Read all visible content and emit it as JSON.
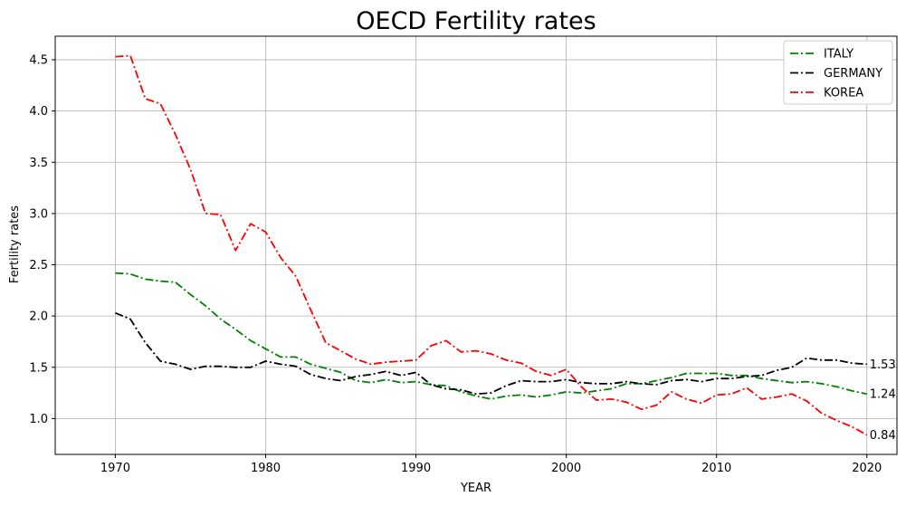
{
  "chart_data": {
    "type": "line",
    "title": "OECD Fertility rates",
    "xlabel": "YEAR",
    "ylabel": "Fertility rates",
    "xlim": [
      1966,
      2022
    ],
    "ylim": [
      0.65,
      4.73
    ],
    "xticks": [
      1970,
      1980,
      1990,
      2000,
      2010,
      2020
    ],
    "yticks": [
      1.0,
      1.5,
      2.0,
      2.5,
      3.0,
      3.5,
      4.0,
      4.5
    ],
    "xtick_labels": [
      "1970",
      "1980",
      "1990",
      "2000",
      "2010",
      "2020"
    ],
    "ytick_labels": [
      "1.0",
      "1.5",
      "2.0",
      "2.5",
      "3.0",
      "3.5",
      "4.0",
      "4.5"
    ],
    "grid": true,
    "legend_position": "top-right",
    "line_style": "dash-dot",
    "x": [
      1970,
      1971,
      1972,
      1973,
      1974,
      1975,
      1976,
      1977,
      1978,
      1979,
      1980,
      1981,
      1982,
      1983,
      1984,
      1985,
      1986,
      1987,
      1988,
      1989,
      1990,
      1991,
      1992,
      1993,
      1994,
      1995,
      1996,
      1997,
      1998,
      1999,
      2000,
      2001,
      2002,
      2003,
      2004,
      2005,
      2006,
      2007,
      2008,
      2009,
      2010,
      2011,
      2012,
      2013,
      2014,
      2015,
      2016,
      2017,
      2018,
      2019,
      2020
    ],
    "series": [
      {
        "name": "ITALY",
        "color": "#008000",
        "values": [
          2.42,
          2.41,
          2.36,
          2.34,
          2.33,
          2.21,
          2.1,
          1.97,
          1.87,
          1.76,
          1.68,
          1.6,
          1.6,
          1.53,
          1.49,
          1.45,
          1.37,
          1.35,
          1.38,
          1.35,
          1.36,
          1.33,
          1.32,
          1.26,
          1.22,
          1.19,
          1.22,
          1.23,
          1.21,
          1.23,
          1.26,
          1.25,
          1.27,
          1.29,
          1.34,
          1.34,
          1.37,
          1.4,
          1.44,
          1.44,
          1.44,
          1.42,
          1.42,
          1.39,
          1.37,
          1.35,
          1.36,
          1.34,
          1.31,
          1.27,
          1.24
        ]
      },
      {
        "name": "GERMANY",
        "color": "#000000",
        "values": [
          2.03,
          1.97,
          1.74,
          1.56,
          1.53,
          1.48,
          1.51,
          1.51,
          1.5,
          1.5,
          1.56,
          1.53,
          1.51,
          1.43,
          1.39,
          1.37,
          1.41,
          1.43,
          1.46,
          1.42,
          1.45,
          1.33,
          1.29,
          1.28,
          1.24,
          1.25,
          1.32,
          1.37,
          1.36,
          1.36,
          1.38,
          1.35,
          1.34,
          1.34,
          1.36,
          1.34,
          1.33,
          1.37,
          1.38,
          1.36,
          1.39,
          1.39,
          1.41,
          1.42,
          1.47,
          1.5,
          1.59,
          1.57,
          1.57,
          1.54,
          1.53
        ]
      },
      {
        "name": "KOREA",
        "color": "#ff0000",
        "values": [
          4.53,
          4.54,
          4.12,
          4.07,
          3.77,
          3.43,
          3.0,
          2.99,
          2.64,
          2.9,
          2.82,
          2.57,
          2.39,
          2.06,
          1.74,
          1.66,
          1.58,
          1.53,
          1.55,
          1.56,
          1.57,
          1.71,
          1.76,
          1.65,
          1.66,
          1.63,
          1.57,
          1.54,
          1.46,
          1.42,
          1.48,
          1.31,
          1.18,
          1.19,
          1.16,
          1.09,
          1.13,
          1.26,
          1.19,
          1.15,
          1.23,
          1.24,
          1.3,
          1.19,
          1.21,
          1.24,
          1.17,
          1.05,
          0.98,
          0.92,
          0.84
        ]
      }
    ],
    "end_labels": [
      {
        "series": "GERMANY",
        "text": "1.53",
        "x": 2020,
        "y": 1.53
      },
      {
        "series": "ITALY",
        "text": "1.24",
        "x": 2020,
        "y": 1.24
      },
      {
        "series": "KOREA",
        "text": "0.84",
        "x": 2020,
        "y": 0.84
      }
    ]
  }
}
